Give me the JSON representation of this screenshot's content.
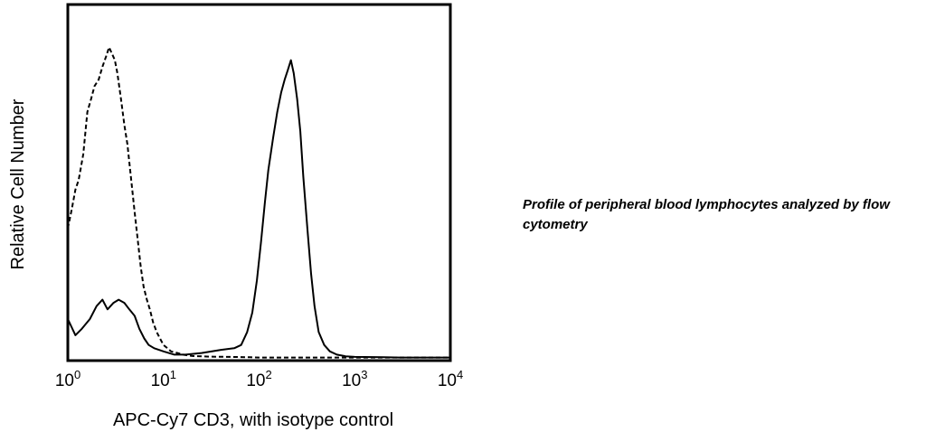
{
  "chart_data": {
    "type": "line",
    "xlabel": "APC-Cy7 CD3, with isotype control",
    "ylabel": "Relative Cell Number",
    "x_scale": "log",
    "xlim": [
      1,
      10000
    ],
    "ylim": [
      0,
      100
    ],
    "x_ticks": [
      {
        "value": 1,
        "base": "10",
        "exp": "0"
      },
      {
        "value": 10,
        "base": "10",
        "exp": "1"
      },
      {
        "value": 100,
        "base": "10",
        "exp": "2"
      },
      {
        "value": 1000,
        "base": "10",
        "exp": "3"
      },
      {
        "value": 10000,
        "base": "10",
        "exp": "4"
      }
    ],
    "grid": false,
    "series": [
      {
        "style": "dashed",
        "x": [
          1.0,
          1.1,
          1.2,
          1.3,
          1.45,
          1.6,
          1.75,
          1.9,
          2.1,
          2.3,
          2.5,
          2.7,
          2.9,
          3.1,
          3.3,
          3.6,
          3.9,
          4.2,
          4.6,
          5.0,
          5.4,
          5.8,
          6.2,
          6.7,
          7.2,
          7.8,
          8.5,
          9.2,
          10.0,
          11.0,
          12.0,
          14.0,
          16.0,
          20.0,
          30.0,
          50.0,
          80.0,
          100.0,
          150.0,
          300.0,
          600.0,
          800.0,
          1000.0,
          3000.0,
          10000.0
        ],
        "y": [
          40,
          46,
          52,
          55,
          63,
          76,
          80,
          84,
          86,
          90,
          93,
          96,
          94,
          92,
          88,
          80,
          72,
          66,
          55,
          45,
          36,
          28,
          22,
          18,
          15,
          11,
          8,
          6,
          4,
          3,
          2,
          1.5,
          1,
          0.6,
          0.4,
          0.3,
          0.2,
          0.1,
          0.1,
          0.1,
          0.1,
          0.1,
          0.1,
          0.1,
          0.1
        ]
      },
      {
        "style": "solid",
        "x": [
          1.0,
          1.2,
          1.4,
          1.7,
          2.0,
          2.3,
          2.6,
          3.0,
          3.4,
          3.9,
          4.4,
          5.0,
          5.6,
          6.3,
          7.0,
          8.0,
          10.0,
          13.0,
          17.0,
          25.0,
          40.0,
          55.0,
          65.0,
          75.0,
          85.0,
          95.0,
          105.0,
          115.0,
          125.0,
          140.0,
          155.0,
          170.0,
          185.0,
          200.0,
          215.0,
          230.0,
          250.0,
          270.0,
          290.0,
          320.0,
          350.0,
          380.0,
          420.0,
          480.0,
          550.0,
          650.0,
          800.0,
          1000.0,
          2000.0,
          3000.0,
          10000.0
        ],
        "y": [
          12,
          7,
          9,
          12,
          16,
          18,
          15,
          17,
          18,
          17,
          15,
          13,
          9,
          6,
          4,
          3,
          2,
          1,
          1,
          1.5,
          2.5,
          3,
          4,
          8,
          14,
          24,
          36,
          48,
          58,
          68,
          76,
          82,
          86,
          89,
          92,
          88,
          80,
          70,
          56,
          40,
          26,
          16,
          8,
          4,
          2,
          1,
          0.5,
          0.3,
          0.2,
          0.1,
          0.1
        ]
      }
    ]
  },
  "caption": {
    "text": "Profile of peripheral blood lymphocytes analyzed by flow cytometry"
  }
}
